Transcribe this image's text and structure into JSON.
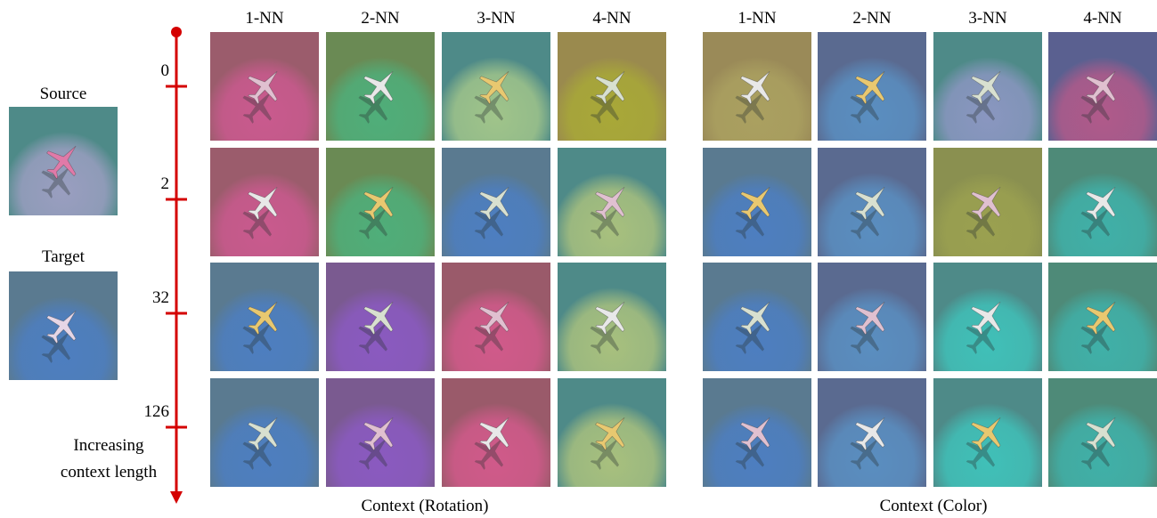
{
  "source": {
    "label": "Source"
  },
  "target": {
    "label": "Target"
  },
  "context_axis": {
    "ticks": [
      "0",
      "2",
      "32",
      "126"
    ],
    "label": [
      "Increasing",
      "context length"
    ]
  },
  "panels": [
    {
      "columns": [
        "1-NN",
        "2-NN",
        "3-NN",
        "4-NN"
      ],
      "caption": "Context (Rotation)"
    },
    {
      "columns": [
        "1-NN",
        "2-NN",
        "3-NN",
        "4-NN"
      ],
      "caption": "Context (Color)"
    }
  ]
}
